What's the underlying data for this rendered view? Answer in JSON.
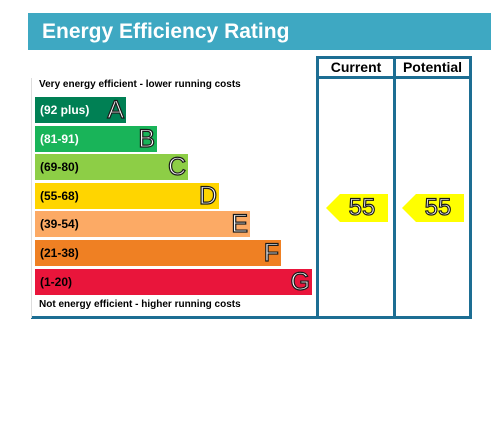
{
  "title": "Energy Efficiency Rating",
  "columns": {
    "current": "Current",
    "potential": "Potential"
  },
  "top_caption": "Very energy efficient - lower running costs",
  "bottom_caption": "Not energy efficient - higher running costs",
  "colors": {
    "header": "#3ea8c2",
    "frame": "#1d6e93",
    "indicator": "#ffff00"
  },
  "chart_data": {
    "type": "bar",
    "categories": [
      "A",
      "B",
      "C",
      "D",
      "E",
      "F",
      "G"
    ],
    "bands": [
      {
        "letter": "A",
        "range": "(92 plus)",
        "min": 92,
        "max": 100,
        "color": "#008054",
        "text_color": "#ffffff"
      },
      {
        "letter": "B",
        "range": "(81-91)",
        "min": 81,
        "max": 91,
        "color": "#19b459",
        "text_color": "#ffffff"
      },
      {
        "letter": "C",
        "range": "(69-80)",
        "min": 69,
        "max": 80,
        "color": "#8dce46",
        "text_color": "#000000"
      },
      {
        "letter": "D",
        "range": "(55-68)",
        "min": 55,
        "max": 68,
        "color": "#ffd500",
        "text_color": "#000000"
      },
      {
        "letter": "E",
        "range": "(39-54)",
        "min": 39,
        "max": 54,
        "color": "#fcaa65",
        "text_color": "#000000"
      },
      {
        "letter": "F",
        "range": "(21-38)",
        "min": 21,
        "max": 38,
        "color": "#ef8023",
        "text_color": "#000000"
      },
      {
        "letter": "G",
        "range": "(1-20)",
        "min": 1,
        "max": 20,
        "color": "#e9153b",
        "text_color": "#000000"
      }
    ],
    "series": [
      {
        "name": "Current",
        "value": 55,
        "band": "D"
      },
      {
        "name": "Potential",
        "value": 55,
        "band": "D"
      }
    ]
  }
}
